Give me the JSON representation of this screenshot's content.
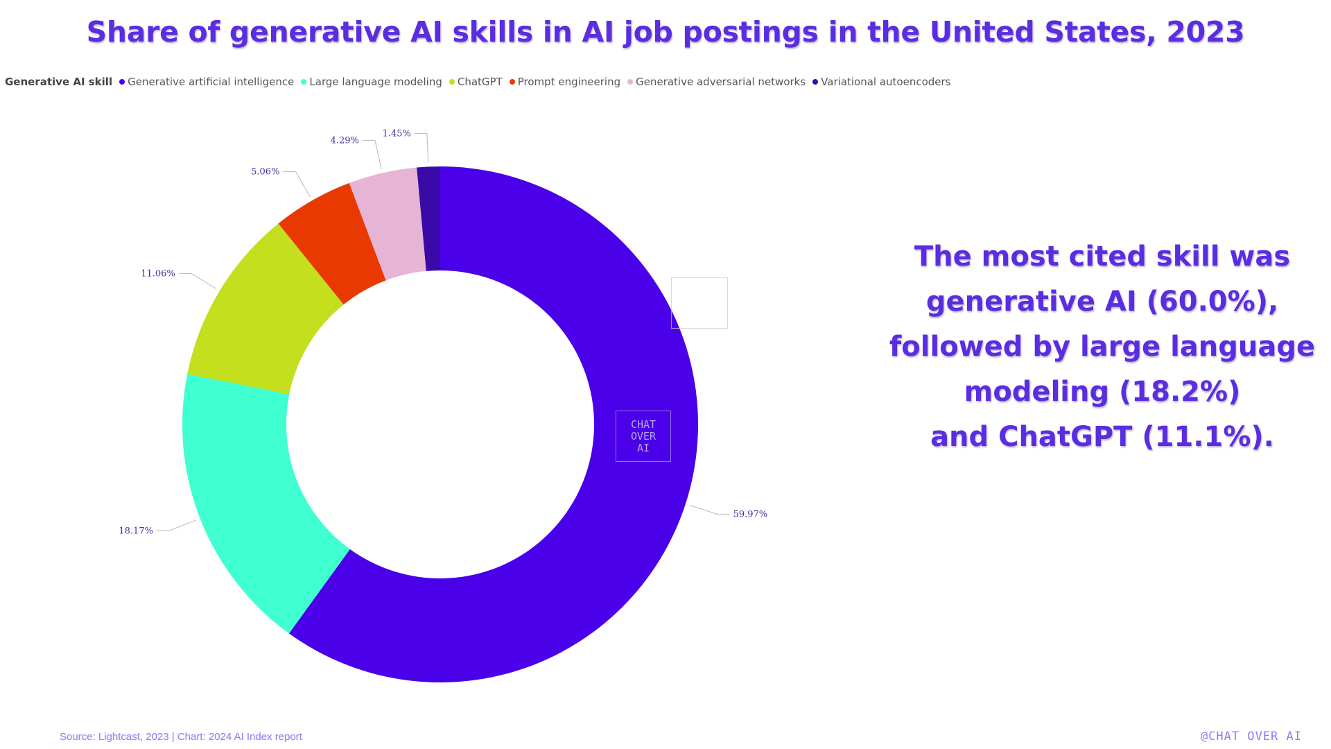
{
  "title": "Share of generative AI skills in AI job postings in the United States, 2023",
  "legend": {
    "title": "Generative AI skill"
  },
  "chart_data": {
    "type": "pie",
    "donut": true,
    "title": "Share of generative AI skills in AI job postings in the United States, 2023",
    "categories": [
      "Generative artificial intelligence",
      "Large language modeling",
      "ChatGPT",
      "Prompt engineering",
      "Generative adversarial networks",
      "Variational autoencoders"
    ],
    "values": [
      59.97,
      18.17,
      11.06,
      5.06,
      4.29,
      1.45
    ],
    "labels": [
      "59.97%",
      "18.17%",
      "11.06%",
      "5.06%",
      "4.29%",
      "1.45%"
    ],
    "colors": [
      "#4a00e8",
      "#40ffd0",
      "#c4df1e",
      "#e83a00",
      "#e6b4d4",
      "#3a0aa8"
    ],
    "legend_position": "top-left"
  },
  "callout": {
    "lines": [
      "The most cited skill was",
      "generative AI (60.0%),",
      "followed by large language",
      "modeling (18.2%)",
      "and ChatGPT (11.1%)."
    ]
  },
  "source": "Source: Lightcast, 2023 | Chart: 2024 AI Index report",
  "brand": "@CHAT OVER AI",
  "watermark": [
    "CHAT",
    "OVER",
    "AI"
  ]
}
